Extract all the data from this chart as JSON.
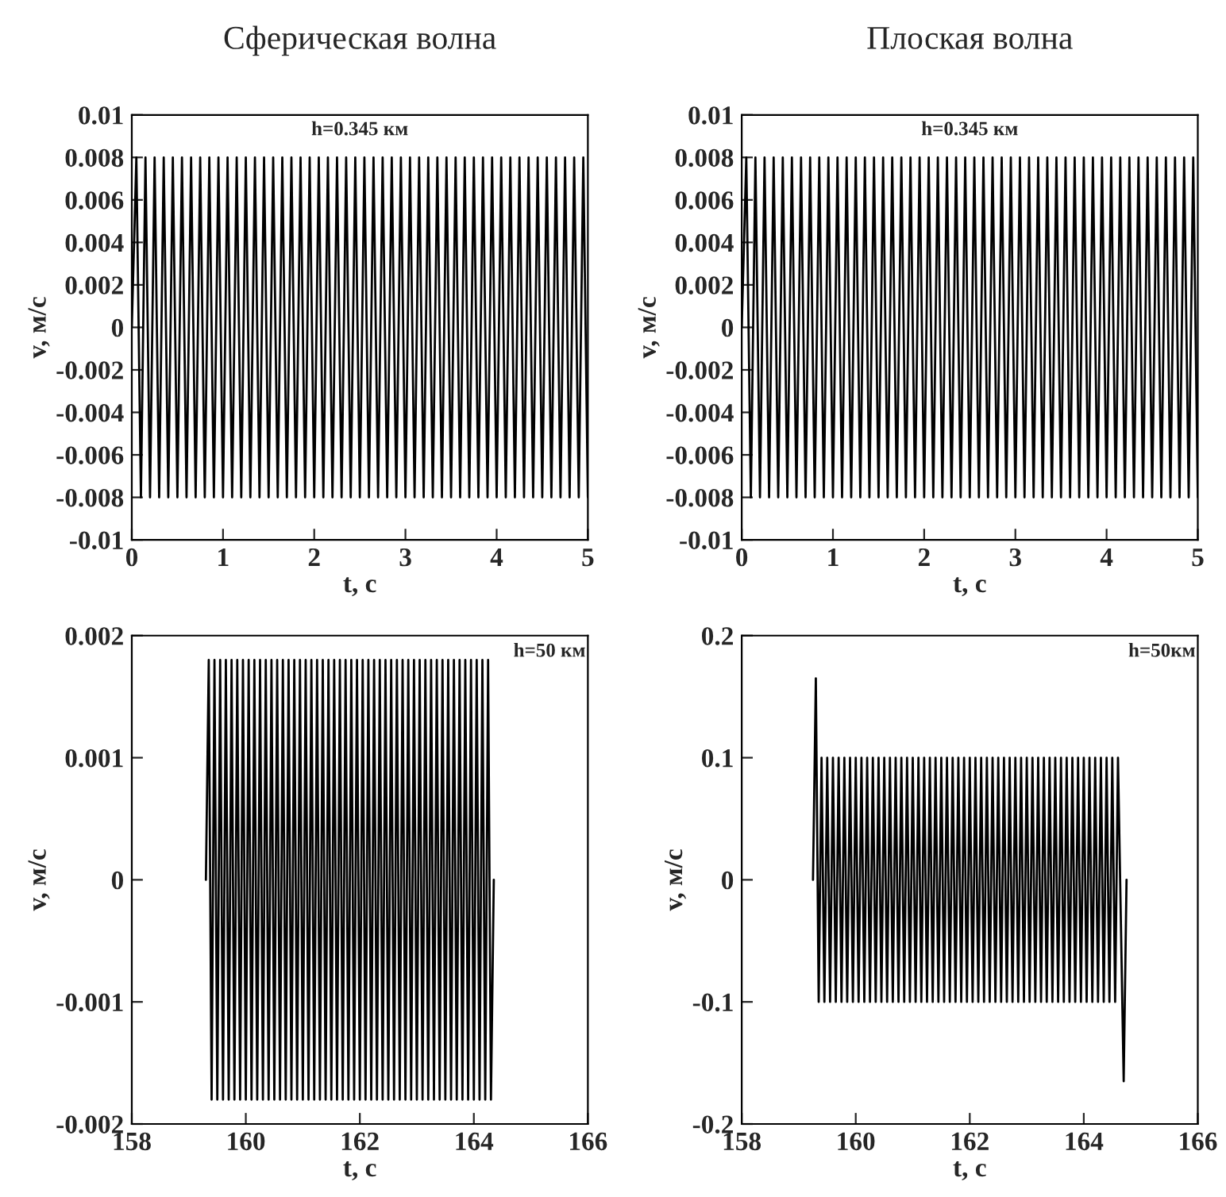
{
  "chart_data": [
    {
      "type": "line",
      "title": "Сферическая волна",
      "xlabel": "t, с",
      "ylabel": "v, м/с",
      "annotations": [
        "h=0.345 км"
      ],
      "xlim": [
        0,
        5
      ],
      "xticks": [
        0,
        1,
        2,
        3,
        4,
        5
      ],
      "ylim": [
        -0.01,
        0.01
      ],
      "yticks": [
        -0.01,
        -0.008,
        -0.006,
        -0.004,
        -0.002,
        0,
        0.002,
        0.004,
        0.006,
        0.008,
        0.01
      ],
      "series": [
        {
          "color": "#000000",
          "x": [
            0,
            0.05,
            0.1,
            0.15,
            0.2,
            0.25,
            0.3,
            0.35,
            0.4,
            0.45,
            0.5,
            0.55,
            0.6,
            0.65,
            0.7,
            0.75,
            0.8,
            0.85,
            0.9,
            0.95,
            1,
            1.05,
            1.1,
            1.15,
            1.2,
            1.25,
            1.3,
            1.35,
            1.4,
            1.45,
            1.5,
            1.55,
            1.6,
            1.65,
            1.7,
            1.75,
            1.8,
            1.85,
            1.9,
            1.95,
            2,
            2.05,
            2.1,
            2.15,
            2.2,
            2.25,
            2.3,
            2.35,
            2.4,
            2.45,
            2.5,
            2.55,
            2.6,
            2.65,
            2.7,
            2.75,
            2.8,
            2.85,
            2.9,
            2.95,
            3,
            3.05,
            3.1,
            3.15,
            3.2,
            3.25,
            3.3,
            3.35,
            3.4,
            3.45,
            3.5,
            3.55,
            3.6,
            3.65,
            3.7,
            3.75,
            3.8,
            3.85,
            3.9,
            3.95,
            4,
            4.05,
            4.1,
            4.15,
            4.2,
            4.25,
            4.3,
            4.35,
            4.4,
            4.45,
            4.5,
            4.55,
            4.6,
            4.65,
            4.7,
            4.75,
            4.8,
            4.85,
            4.9,
            4.95,
            5
          ],
          "values": [
            0,
            0.008,
            -0.008,
            0.008,
            -0.008,
            0.008,
            -0.008,
            0.008,
            -0.008,
            0.008,
            -0.008,
            0.008,
            -0.008,
            0.008,
            -0.008,
            0.008,
            -0.008,
            0.008,
            -0.008,
            0.008,
            -0.008,
            0.008,
            -0.008,
            0.008,
            -0.008,
            0.008,
            -0.008,
            0.008,
            -0.008,
            0.008,
            -0.008,
            0.008,
            -0.008,
            0.008,
            -0.008,
            0.008,
            -0.008,
            0.008,
            -0.008,
            0.008,
            -0.008,
            0.008,
            -0.008,
            0.008,
            -0.008,
            0.008,
            -0.008,
            0.008,
            -0.008,
            0.008,
            -0.008,
            0.008,
            -0.008,
            0.008,
            -0.008,
            0.008,
            -0.008,
            0.008,
            -0.008,
            0.008,
            -0.008,
            0.008,
            -0.008,
            0.008,
            -0.008,
            0.008,
            -0.008,
            0.008,
            -0.008,
            0.008,
            -0.008,
            0.008,
            -0.008,
            0.008,
            -0.008,
            0.008,
            -0.008,
            0.008,
            -0.008,
            0.008,
            -0.008,
            0.008,
            -0.008,
            0.008,
            -0.008,
            0.008,
            -0.008,
            0.008,
            -0.008,
            0.008,
            -0.008,
            0.008,
            -0.008,
            0.008,
            -0.008,
            0.008,
            -0.008,
            0.008,
            -0.008,
            0.008,
            -0.008
          ]
        }
      ]
    },
    {
      "type": "line",
      "title": "Плоская волна",
      "xlabel": "t, с",
      "ylabel": "v, м/с",
      "annotations": [
        "h=0.345 км"
      ],
      "xlim": [
        0,
        5
      ],
      "xticks": [
        0,
        1,
        2,
        3,
        4,
        5
      ],
      "ylim": [
        -0.01,
        0.01
      ],
      "yticks": [
        -0.01,
        -0.008,
        -0.006,
        -0.004,
        -0.002,
        0,
        0.002,
        0.004,
        0.006,
        0.008,
        0.01
      ],
      "series": [
        {
          "color": "#000000",
          "x": [
            0,
            0.05,
            0.1,
            0.15,
            0.2,
            0.25,
            0.3,
            0.35,
            0.4,
            0.45,
            0.5,
            0.55,
            0.6,
            0.65,
            0.7,
            0.75,
            0.8,
            0.85,
            0.9,
            0.95,
            1,
            1.05,
            1.1,
            1.15,
            1.2,
            1.25,
            1.3,
            1.35,
            1.4,
            1.45,
            1.5,
            1.55,
            1.6,
            1.65,
            1.7,
            1.75,
            1.8,
            1.85,
            1.9,
            1.95,
            2,
            2.05,
            2.1,
            2.15,
            2.2,
            2.25,
            2.3,
            2.35,
            2.4,
            2.45,
            2.5,
            2.55,
            2.6,
            2.65,
            2.7,
            2.75,
            2.8,
            2.85,
            2.9,
            2.95,
            3,
            3.05,
            3.1,
            3.15,
            3.2,
            3.25,
            3.3,
            3.35,
            3.4,
            3.45,
            3.5,
            3.55,
            3.6,
            3.65,
            3.7,
            3.75,
            3.8,
            3.85,
            3.9,
            3.95,
            4,
            4.05,
            4.1,
            4.15,
            4.2,
            4.25,
            4.3,
            4.35,
            4.4,
            4.45,
            4.5,
            4.55,
            4.6,
            4.65,
            4.7,
            4.75,
            4.8,
            4.85,
            4.9,
            4.95,
            5
          ],
          "values": [
            0,
            0.008,
            -0.008,
            0.008,
            -0.008,
            0.008,
            -0.008,
            0.008,
            -0.008,
            0.008,
            -0.008,
            0.008,
            -0.008,
            0.008,
            -0.008,
            0.008,
            -0.008,
            0.008,
            -0.008,
            0.008,
            -0.008,
            0.008,
            -0.008,
            0.008,
            -0.008,
            0.008,
            -0.008,
            0.008,
            -0.008,
            0.008,
            -0.008,
            0.008,
            -0.008,
            0.008,
            -0.008,
            0.008,
            -0.008,
            0.008,
            -0.008,
            0.008,
            -0.008,
            0.008,
            -0.008,
            0.008,
            -0.008,
            0.008,
            -0.008,
            0.008,
            -0.008,
            0.008,
            -0.008,
            0.008,
            -0.008,
            0.008,
            -0.008,
            0.008,
            -0.008,
            0.008,
            -0.008,
            0.008,
            -0.008,
            0.008,
            -0.008,
            0.008,
            -0.008,
            0.008,
            -0.008,
            0.008,
            -0.008,
            0.008,
            -0.008,
            0.008,
            -0.008,
            0.008,
            -0.008,
            0.008,
            -0.008,
            0.008,
            -0.008,
            0.008,
            -0.008,
            0.008,
            -0.008,
            0.008,
            -0.008,
            0.008,
            -0.008,
            0.008,
            -0.008,
            0.008,
            -0.008,
            0.008,
            -0.008,
            0.008,
            -0.008,
            0.008,
            -0.008,
            0.008,
            -0.008,
            0.008,
            -0.008
          ]
        }
      ]
    },
    {
      "type": "line",
      "xlabel": "t, с",
      "ylabel": "v, м/с",
      "annotations": [
        "h=50 км"
      ],
      "xlim": [
        158,
        166
      ],
      "xticks": [
        158,
        160,
        162,
        164,
        166
      ],
      "ylim": [
        -0.002,
        0.002
      ],
      "yticks": [
        -0.002,
        -0.001,
        0,
        0.001,
        0.002
      ],
      "series": [
        {
          "color": "#000000",
          "x": [
            159.3,
            159.35,
            159.4,
            159.45,
            159.5,
            159.55,
            159.6,
            159.65,
            159.7,
            159.75,
            159.8,
            159.85,
            159.9,
            159.95,
            160,
            160.05,
            160.1,
            160.15,
            160.2,
            160.25,
            160.3,
            160.35,
            160.4,
            160.45,
            160.5,
            160.55,
            160.6,
            160.65,
            160.7,
            160.75,
            160.8,
            160.85,
            160.9,
            160.95,
            161,
            161.05,
            161.1,
            161.15,
            161.2,
            161.25,
            161.3,
            161.35,
            161.4,
            161.45,
            161.5,
            161.55,
            161.6,
            161.65,
            161.7,
            161.75,
            161.8,
            161.85,
            161.9,
            161.95,
            162,
            162.05,
            162.1,
            162.15,
            162.2,
            162.25,
            162.3,
            162.35,
            162.4,
            162.45,
            162.5,
            162.55,
            162.6,
            162.65,
            162.7,
            162.75,
            162.8,
            162.85,
            162.9,
            162.95,
            163,
            163.05,
            163.1,
            163.15,
            163.2,
            163.25,
            163.3,
            163.35,
            163.4,
            163.45,
            163.5,
            163.55,
            163.6,
            163.65,
            163.7,
            163.75,
            163.8,
            163.85,
            163.9,
            163.95,
            164,
            164.05,
            164.1,
            164.15,
            164.2,
            164.25,
            164.3,
            164.35
          ],
          "values": [
            0,
            0.0018,
            -0.0018,
            0.0018,
            -0.0018,
            0.0018,
            -0.0018,
            0.0018,
            -0.0018,
            0.0018,
            -0.0018,
            0.0018,
            -0.0018,
            0.0018,
            -0.0018,
            0.0018,
            -0.0018,
            0.0018,
            -0.0018,
            0.0018,
            -0.0018,
            0.0018,
            -0.0018,
            0.0018,
            -0.0018,
            0.0018,
            -0.0018,
            0.0018,
            -0.0018,
            0.0018,
            -0.0018,
            0.0018,
            -0.0018,
            0.0018,
            -0.0018,
            0.0018,
            -0.0018,
            0.0018,
            -0.0018,
            0.0018,
            -0.0018,
            0.0018,
            -0.0018,
            0.0018,
            -0.0018,
            0.0018,
            -0.0018,
            0.0018,
            -0.0018,
            0.0018,
            -0.0018,
            0.0018,
            -0.0018,
            0.0018,
            -0.0018,
            0.0018,
            -0.0018,
            0.0018,
            -0.0018,
            0.0018,
            -0.0018,
            0.0018,
            -0.0018,
            0.0018,
            -0.0018,
            0.0018,
            -0.0018,
            0.0018,
            -0.0018,
            0.0018,
            -0.0018,
            0.0018,
            -0.0018,
            0.0018,
            -0.0018,
            0.0018,
            -0.0018,
            0.0018,
            -0.0018,
            0.0018,
            -0.0018,
            0.0018,
            -0.0018,
            0.0018,
            -0.0018,
            0.0018,
            -0.0018,
            0.0018,
            -0.0018,
            0.0018,
            -0.0018,
            0.0018,
            -0.0018,
            0.0018,
            -0.0018,
            0.0018,
            -0.0018,
            0.0018,
            -0.0018,
            0.0018,
            -0.0018,
            0
          ]
        }
      ]
    },
    {
      "type": "line",
      "xlabel": "t, с",
      "ylabel": "v, м/с",
      "annotations": [
        "h=50км"
      ],
      "xlim": [
        158,
        166
      ],
      "xticks": [
        158,
        160,
        162,
        164,
        166
      ],
      "ylim": [
        -0.2,
        0.2
      ],
      "yticks": [
        -0.2,
        -0.1,
        0,
        0.1,
        0.2
      ],
      "series": [
        {
          "color": "#000000",
          "x": [
            159.25,
            159.3,
            159.35,
            159.4,
            159.45,
            159.5,
            159.55,
            159.6,
            159.65,
            159.7,
            159.75,
            159.8,
            159.85,
            159.9,
            159.95,
            160,
            160.05,
            160.1,
            160.15,
            160.2,
            160.25,
            160.3,
            160.35,
            160.4,
            160.45,
            160.5,
            160.55,
            160.6,
            160.65,
            160.7,
            160.75,
            160.8,
            160.85,
            160.9,
            160.95,
            161,
            161.05,
            161.1,
            161.15,
            161.2,
            161.25,
            161.3,
            161.35,
            161.4,
            161.45,
            161.5,
            161.55,
            161.6,
            161.65,
            161.7,
            161.75,
            161.8,
            161.85,
            161.9,
            161.95,
            162,
            162.05,
            162.1,
            162.15,
            162.2,
            162.25,
            162.3,
            162.35,
            162.4,
            162.45,
            162.5,
            162.55,
            162.6,
            162.65,
            162.7,
            162.75,
            162.8,
            162.85,
            162.9,
            162.95,
            163,
            163.05,
            163.1,
            163.15,
            163.2,
            163.25,
            163.3,
            163.35,
            163.4,
            163.45,
            163.5,
            163.55,
            163.6,
            163.65,
            163.7,
            163.75,
            163.8,
            163.85,
            163.9,
            163.95,
            164,
            164.05,
            164.1,
            164.15,
            164.2,
            164.25,
            164.3,
            164.35,
            164.4,
            164.45,
            164.5,
            164.55,
            164.6,
            164.7,
            164.75
          ],
          "values": [
            0,
            0.165,
            -0.1,
            0.1,
            -0.1,
            0.1,
            -0.1,
            0.1,
            -0.1,
            0.1,
            -0.1,
            0.1,
            -0.1,
            0.1,
            -0.1,
            0.1,
            -0.1,
            0.1,
            -0.1,
            0.1,
            -0.1,
            0.1,
            -0.1,
            0.1,
            -0.1,
            0.1,
            -0.1,
            0.1,
            -0.1,
            0.1,
            -0.1,
            0.1,
            -0.1,
            0.1,
            -0.1,
            0.1,
            -0.1,
            0.1,
            -0.1,
            0.1,
            -0.1,
            0.1,
            -0.1,
            0.1,
            -0.1,
            0.1,
            -0.1,
            0.1,
            -0.1,
            0.1,
            -0.1,
            0.1,
            -0.1,
            0.1,
            -0.1,
            0.1,
            -0.1,
            0.1,
            -0.1,
            0.1,
            -0.1,
            0.1,
            -0.1,
            0.1,
            -0.1,
            0.1,
            -0.1,
            0.1,
            -0.1,
            0.1,
            -0.1,
            0.1,
            -0.1,
            0.1,
            -0.1,
            0.1,
            -0.1,
            0.1,
            -0.1,
            0.1,
            -0.1,
            0.1,
            -0.1,
            0.1,
            -0.1,
            0.1,
            -0.1,
            0.1,
            -0.1,
            0.1,
            -0.1,
            0.1,
            -0.1,
            0.1,
            -0.1,
            0.1,
            -0.1,
            0.1,
            -0.1,
            0.1,
            -0.1,
            0.1,
            -0.1,
            0.1,
            -0.1,
            0.1,
            -0.1,
            0.1,
            -0.165,
            0
          ]
        }
      ]
    }
  ]
}
